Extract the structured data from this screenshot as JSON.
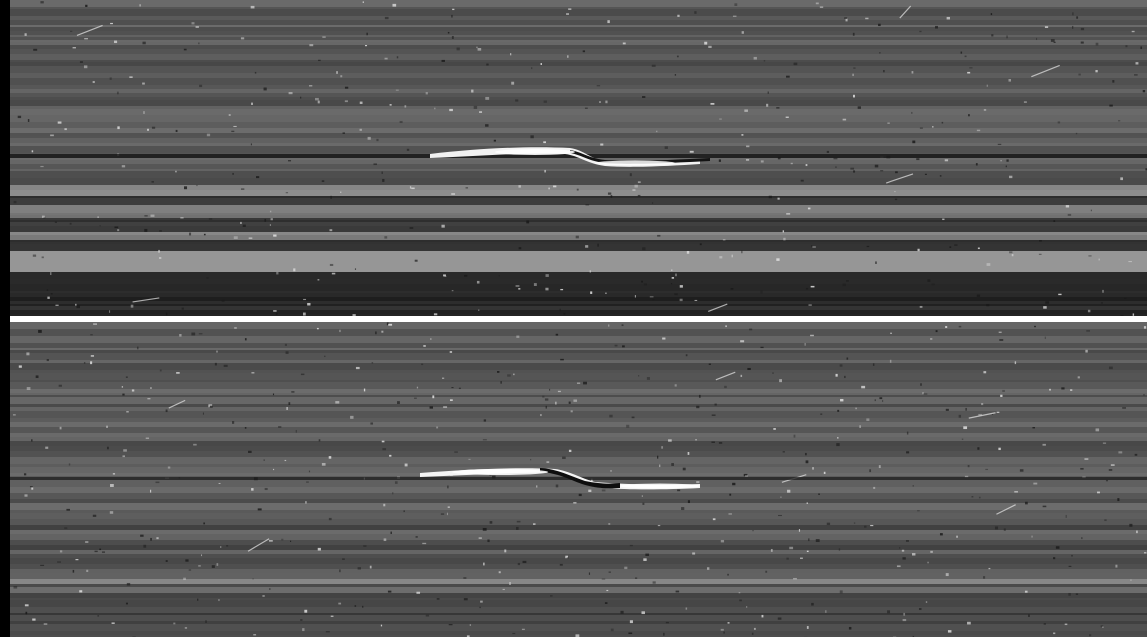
{
  "image": {
    "subject": "ring-propeller-pair",
    "palette": {
      "background": "#000000",
      "ring_mid": "#5a5a5a",
      "ring_dark": "#2e2e2e",
      "ring_bright": "#8a8a8a",
      "feature_bright": "#ffffff",
      "feature_dark": "#111111",
      "separator": "#ffffff"
    }
  }
}
